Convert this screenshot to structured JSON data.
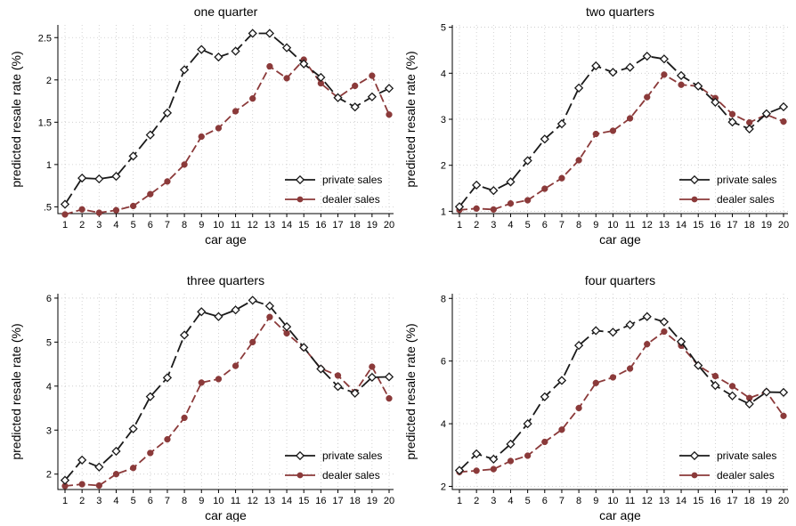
{
  "chart_data": [
    {
      "type": "line",
      "title": "one quarter",
      "xlabel": "car age",
      "ylabel": "predicted resale rate (%)",
      "x": [
        1,
        2,
        3,
        4,
        5,
        6,
        7,
        8,
        9,
        10,
        11,
        12,
        13,
        14,
        15,
        16,
        17,
        18,
        19,
        20
      ],
      "xticks": [
        "1",
        "2",
        "3",
        "4",
        "5",
        "6",
        "7",
        "8",
        "9",
        "10",
        "11",
        "12",
        "13",
        "14",
        "15",
        "16",
        "17",
        "18",
        "19",
        "20"
      ],
      "yticks": [
        ".5",
        "1",
        "1.5",
        "2",
        "2.5"
      ],
      "ytick_values": [
        0.5,
        1,
        1.5,
        2,
        2.5
      ],
      "ylim": [
        0.42,
        2.65
      ],
      "series": [
        {
          "name": "private sales",
          "color": "#1a1a1a",
          "values": [
            0.53,
            0.84,
            0.83,
            0.86,
            1.1,
            1.35,
            1.61,
            2.12,
            2.36,
            2.27,
            2.34,
            2.55,
            2.55,
            2.38,
            2.19,
            2.03,
            1.79,
            1.68,
            1.8,
            1.9
          ]
        },
        {
          "name": "dealer sales",
          "color": "#8b3a3a",
          "values": [
            0.41,
            0.47,
            0.43,
            0.46,
            0.51,
            0.65,
            0.8,
            1.0,
            1.33,
            1.43,
            1.63,
            1.78,
            2.16,
            2.02,
            2.24,
            1.96,
            1.79,
            1.93,
            2.05,
            1.59
          ]
        }
      ],
      "grid": true,
      "legend": "bottom-right"
    },
    {
      "type": "line",
      "title": "two quarters",
      "xlabel": "car age",
      "ylabel": "predicted resale rate (%)",
      "x": [
        1,
        2,
        3,
        4,
        5,
        6,
        7,
        8,
        9,
        10,
        11,
        12,
        13,
        14,
        15,
        16,
        17,
        18,
        19,
        20
      ],
      "xticks": [
        "1",
        "2",
        "3",
        "4",
        "5",
        "6",
        "7",
        "8",
        "9",
        "10",
        "11",
        "12",
        "13",
        "14",
        "15",
        "16",
        "17",
        "18",
        "19",
        "20"
      ],
      "yticks": [
        "1",
        "2",
        "3",
        "4",
        "5"
      ],
      "ytick_values": [
        1,
        2,
        3,
        4,
        5
      ],
      "ylim": [
        0.95,
        5.05
      ],
      "series": [
        {
          "name": "private sales",
          "color": "#1a1a1a",
          "values": [
            1.1,
            1.57,
            1.45,
            1.64,
            2.1,
            2.57,
            2.9,
            3.68,
            4.16,
            4.02,
            4.13,
            4.37,
            4.31,
            3.95,
            3.72,
            3.37,
            2.94,
            2.79,
            3.12,
            3.27
          ]
        },
        {
          "name": "dealer sales",
          "color": "#8b3a3a",
          "values": [
            1.03,
            1.06,
            1.04,
            1.17,
            1.24,
            1.49,
            1.72,
            2.11,
            2.68,
            2.75,
            3.02,
            3.48,
            3.97,
            3.75,
            3.72,
            3.46,
            3.11,
            2.93,
            3.1,
            2.95
          ]
        }
      ],
      "grid": true,
      "legend": "bottom-right"
    },
    {
      "type": "line",
      "title": "three quarters",
      "xlabel": "car age",
      "ylabel": "predicted resale rate (%)",
      "x": [
        1,
        2,
        3,
        4,
        5,
        6,
        7,
        8,
        9,
        10,
        11,
        12,
        13,
        14,
        15,
        16,
        17,
        18,
        19,
        20
      ],
      "xticks": [
        "1",
        "2",
        "3",
        "4",
        "5",
        "6",
        "7",
        "8",
        "9",
        "10",
        "11",
        "12",
        "13",
        "14",
        "15",
        "16",
        "17",
        "18",
        "19",
        "20"
      ],
      "yticks": [
        "2",
        "3",
        "4",
        "5",
        "6"
      ],
      "ytick_values": [
        2,
        3,
        4,
        5,
        6
      ],
      "ylim": [
        1.65,
        6.1
      ],
      "series": [
        {
          "name": "private sales",
          "color": "#1a1a1a",
          "values": [
            1.86,
            2.32,
            2.16,
            2.52,
            3.03,
            3.76,
            4.19,
            5.16,
            5.69,
            5.58,
            5.73,
            5.95,
            5.82,
            5.35,
            4.88,
            4.39,
            3.99,
            3.84,
            4.2,
            4.21
          ]
        },
        {
          "name": "dealer sales",
          "color": "#8b3a3a",
          "values": [
            1.73,
            1.77,
            1.74,
            2.0,
            2.14,
            2.48,
            2.79,
            3.28,
            4.08,
            4.16,
            4.46,
            5.0,
            5.57,
            5.2,
            4.87,
            4.4,
            4.24,
            3.86,
            4.44,
            3.72
          ]
        }
      ],
      "grid": true,
      "legend": "bottom-right"
    },
    {
      "type": "line",
      "title": "four quarters",
      "xlabel": "car age",
      "ylabel": "predicted resale rate (%)",
      "x": [
        1,
        2,
        3,
        4,
        5,
        6,
        7,
        8,
        9,
        10,
        11,
        12,
        13,
        14,
        15,
        16,
        17,
        18,
        19,
        20
      ],
      "xticks": [
        "1",
        "2",
        "3",
        "4",
        "5",
        "6",
        "7",
        "8",
        "9",
        "10",
        "11",
        "12",
        "13",
        "14",
        "15",
        "16",
        "17",
        "18",
        "19",
        "20"
      ],
      "yticks": [
        "2",
        "4",
        "6",
        "8"
      ],
      "ytick_values": [
        2,
        4,
        6,
        8
      ],
      "ylim": [
        1.9,
        8.15
      ],
      "series": [
        {
          "name": "private sales",
          "color": "#1a1a1a",
          "values": [
            2.51,
            3.04,
            2.87,
            3.35,
            4.0,
            4.86,
            5.38,
            6.5,
            6.97,
            6.92,
            7.16,
            7.42,
            7.25,
            6.62,
            5.86,
            5.22,
            4.89,
            4.63,
            5.01,
            5.0
          ]
        },
        {
          "name": "dealer sales",
          "color": "#8b3a3a",
          "values": [
            2.46,
            2.5,
            2.55,
            2.81,
            2.98,
            3.42,
            3.81,
            4.5,
            5.3,
            5.48,
            5.76,
            6.54,
            6.94,
            6.49,
            5.86,
            5.52,
            5.2,
            4.82,
            5.02,
            4.25
          ]
        }
      ],
      "grid": true,
      "legend": "bottom-right"
    }
  ]
}
